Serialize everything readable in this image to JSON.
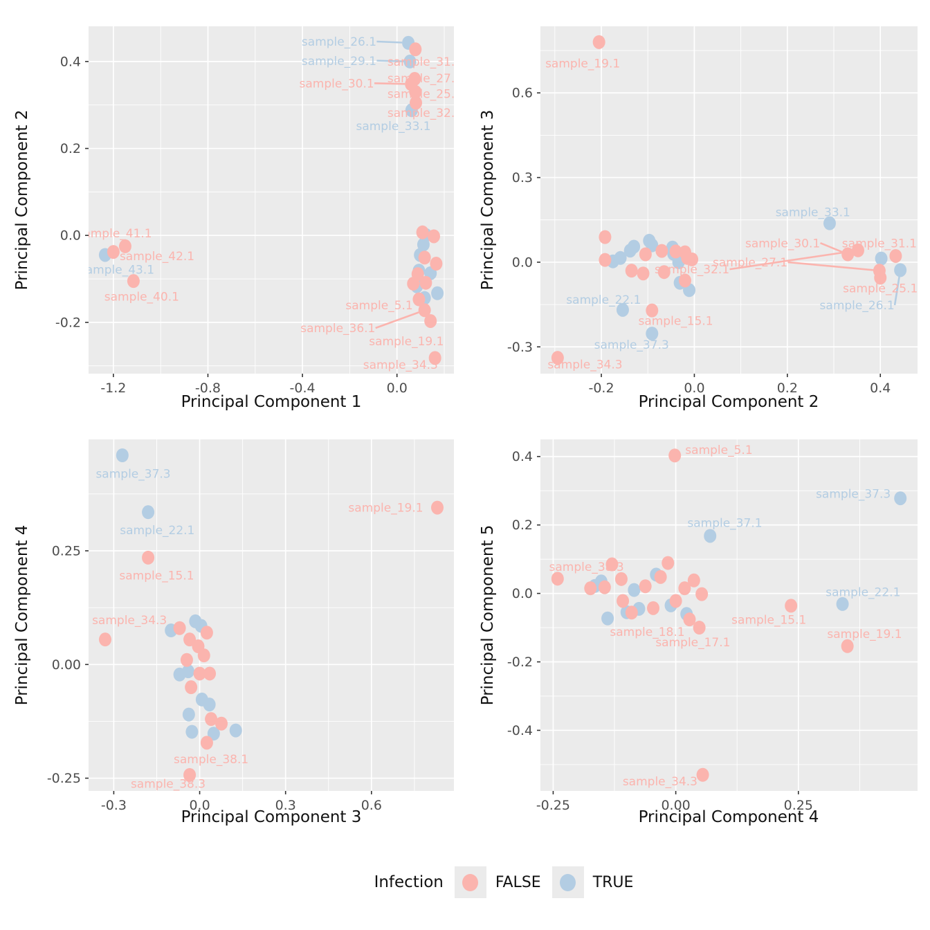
{
  "colors": {
    "false_pink": "#FBB4AE",
    "true_blue": "#B3CDE3",
    "panel_bg": "#EBEBEB",
    "grid": "#FFFFFF",
    "tick_text": "#4D4D4D",
    "tick_mark": "#333333",
    "axis_title": "#111111",
    "figure_bg": "#FFFFFF"
  },
  "legend": {
    "title": "Infection",
    "false_label": "FALSE",
    "true_label": "TRUE"
  },
  "point_fields": [
    "x",
    "y",
    "infection(F/T)",
    "label",
    "label_x",
    "label_y",
    "leader"
  ],
  "chart_data": [
    {
      "id": "pc1-vs-pc2",
      "type": "scatter",
      "xlabel": "Principal Component 1",
      "ylabel": "Principal Component 2",
      "x_ticks": [
        -1.2,
        -0.8,
        -0.4,
        0.0
      ],
      "x_tick_labels": [
        "-1.2",
        "-0.8",
        "-0.4",
        "0.0"
      ],
      "y_ticks": [
        -0.2,
        0.0,
        0.2,
        0.4
      ],
      "y_tick_labels": [
        "-0.2",
        "0.0",
        "0.2",
        "0.4"
      ],
      "xlim": [
        -1.305,
        0.241
      ],
      "ylim": [
        -0.318,
        0.481
      ],
      "points": [
        [
          0.048,
          0.443,
          "T",
          "sample_26.1",
          -0.245,
          0.446,
          1
        ],
        [
          0.055,
          0.4,
          "T",
          "sample_29.1",
          -0.245,
          0.402,
          1
        ],
        [
          0.062,
          0.288,
          "T",
          "sample_33.1",
          -0.015,
          0.252,
          0
        ],
        [
          -1.235,
          -0.045,
          "T",
          "sample_43.1",
          -1.185,
          -0.078,
          0
        ],
        [
          0.122,
          0.001,
          "T"
        ],
        [
          0.112,
          -0.021,
          "T"
        ],
        [
          0.098,
          -0.045,
          "T"
        ],
        [
          0.142,
          -0.087,
          "T"
        ],
        [
          0.093,
          -0.081,
          "T"
        ],
        [
          0.084,
          -0.117,
          "T"
        ],
        [
          0.171,
          -0.133,
          "T"
        ],
        [
          0.117,
          -0.144,
          "T"
        ],
        [
          0.078,
          0.428,
          "F",
          "sample_31.1",
          0.118,
          0.4,
          0
        ],
        [
          0.075,
          0.36,
          "F",
          "sample_27.1",
          0.118,
          0.362,
          0
        ],
        [
          0.06,
          0.348,
          "F",
          "sample_30.1",
          -0.255,
          0.35,
          1
        ],
        [
          0.078,
          0.33,
          "F",
          "sample_25.1",
          0.118,
          0.326,
          0
        ],
        [
          0.08,
          0.305,
          "F",
          "sample_32.1",
          0.118,
          0.282,
          0
        ],
        [
          0.108,
          0.007,
          "F"
        ],
        [
          0.156,
          -0.002,
          "F"
        ],
        [
          0.117,
          -0.051,
          "F"
        ],
        [
          0.166,
          -0.065,
          "F"
        ],
        [
          0.088,
          -0.089,
          "F"
        ],
        [
          0.069,
          -0.111,
          "F"
        ],
        [
          0.122,
          -0.109,
          "F"
        ],
        [
          0.093,
          -0.147,
          "F",
          "sample_5.1",
          -0.075,
          -0.16,
          0
        ],
        [
          0.117,
          -0.172,
          "F",
          "sample_36.1",
          -0.25,
          -0.213,
          1
        ],
        [
          0.142,
          -0.197,
          "F",
          "sample_19.1",
          0.04,
          -0.243,
          0
        ],
        [
          0.161,
          -0.282,
          "F",
          "sample_34.3",
          0.015,
          -0.297,
          0
        ],
        [
          -1.2,
          -0.038,
          "F",
          "sample_41.1",
          -1.195,
          0.005,
          0
        ],
        [
          -1.15,
          -0.025,
          "F",
          "sample_42.1",
          -1.015,
          -0.047,
          0
        ],
        [
          -1.115,
          -0.105,
          "F",
          "sample_40.1",
          -1.08,
          -0.14,
          0
        ]
      ]
    },
    {
      "id": "pc2-vs-pc3",
      "type": "scatter",
      "xlabel": "Principal Component 2",
      "ylabel": "Principal Component 3",
      "x_ticks": [
        -0.2,
        0.0,
        0.2,
        0.4
      ],
      "x_tick_labels": [
        "-0.2",
        "0.0",
        "0.2",
        "0.4"
      ],
      "y_ticks": [
        -0.3,
        0.0,
        0.3,
        0.6
      ],
      "y_tick_labels": [
        "-0.3",
        "0.0",
        "0.3",
        "0.6"
      ],
      "xlim": [
        -0.331,
        0.48
      ],
      "ylim": [
        -0.395,
        0.836
      ],
      "points": [
        [
          0.291,
          0.138,
          "T",
          "sample_33.1",
          0.255,
          0.178,
          0
        ],
        [
          0.402,
          0.013,
          "T"
        ],
        [
          0.443,
          -0.028,
          "T",
          "sample_26.1",
          0.35,
          -0.152,
          1
        ],
        [
          -0.175,
          0.003,
          "T"
        ],
        [
          -0.159,
          0.015,
          "T"
        ],
        [
          -0.138,
          0.041,
          "T"
        ],
        [
          -0.13,
          0.055,
          "T"
        ],
        [
          -0.097,
          0.076,
          "T"
        ],
        [
          -0.091,
          0.06,
          "T"
        ],
        [
          -0.047,
          0.052,
          "T"
        ],
        [
          -0.045,
          0.03,
          "T"
        ],
        [
          -0.034,
          0.0,
          "T"
        ],
        [
          -0.031,
          -0.073,
          "T"
        ],
        [
          -0.011,
          -0.099,
          "T"
        ],
        [
          -0.154,
          -0.169,
          "T",
          "sample_22.1",
          -0.195,
          -0.132,
          0
        ],
        [
          -0.091,
          -0.253,
          "T",
          "sample_37.3",
          -0.135,
          -0.292,
          0
        ],
        [
          -0.205,
          0.78,
          "F",
          "sample_19.1",
          -0.24,
          0.705,
          0
        ],
        [
          -0.192,
          0.089,
          "F"
        ],
        [
          -0.192,
          0.008,
          "F"
        ],
        [
          -0.135,
          -0.03,
          "F"
        ],
        [
          -0.11,
          -0.04,
          "F"
        ],
        [
          -0.105,
          0.028,
          "F"
        ],
        [
          -0.07,
          0.04,
          "F"
        ],
        [
          -0.065,
          -0.035,
          "F"
        ],
        [
          -0.04,
          0.038,
          "F"
        ],
        [
          -0.02,
          0.035,
          "F"
        ],
        [
          -0.015,
          0.015,
          "F"
        ],
        [
          -0.02,
          -0.065,
          "F"
        ],
        [
          -0.005,
          0.01,
          "F"
        ],
        [
          -0.091,
          -0.171,
          "F",
          "sample_15.1",
          -0.04,
          -0.207,
          0
        ],
        [
          -0.294,
          -0.339,
          "F",
          "sample_34.3",
          -0.235,
          -0.362,
          0
        ],
        [
          0.33,
          0.028,
          "F",
          "sample_30.1",
          0.19,
          0.068,
          1
        ],
        [
          0.352,
          0.042,
          "F",
          "sample_32.1",
          -0.005,
          -0.025,
          1
        ],
        [
          0.433,
          0.022,
          "F",
          "sample_31.1",
          0.398,
          0.068,
          0
        ],
        [
          0.398,
          -0.03,
          "F",
          "sample_27.1",
          0.12,
          0.0,
          1
        ],
        [
          0.4,
          -0.055,
          "F",
          "sample_25.1",
          0.4,
          -0.092,
          0
        ]
      ]
    },
    {
      "id": "pc3-vs-pc4",
      "type": "scatter",
      "xlabel": "Principal Component 3",
      "ylabel": "Principal Component 4",
      "x_ticks": [
        -0.3,
        0.0,
        0.3,
        0.6
      ],
      "x_tick_labels": [
        "-0.3",
        "0.0",
        "0.3",
        "0.6"
      ],
      "y_ticks": [
        -0.25,
        0.0,
        0.25
      ],
      "y_tick_labels": [
        "-0.25",
        "0.00",
        "0.25"
      ],
      "xlim": [
        -0.388,
        0.888
      ],
      "ylim": [
        -0.278,
        0.495
      ],
      "points": [
        [
          -0.27,
          0.46,
          "T",
          "sample_37.3",
          -0.232,
          0.42,
          0
        ],
        [
          -0.18,
          0.335,
          "T",
          "sample_22.1",
          -0.148,
          0.296,
          0
        ],
        [
          -0.1,
          0.075,
          "T"
        ],
        [
          -0.015,
          0.095,
          "T"
        ],
        [
          0.005,
          0.085,
          "T"
        ],
        [
          -0.07,
          -0.022,
          "T"
        ],
        [
          -0.04,
          -0.015,
          "T"
        ],
        [
          0.008,
          -0.077,
          "T"
        ],
        [
          0.034,
          -0.088,
          "T"
        ],
        [
          -0.038,
          -0.11,
          "T"
        ],
        [
          -0.027,
          -0.148,
          "T"
        ],
        [
          0.049,
          -0.152,
          "T"
        ],
        [
          0.126,
          -0.145,
          "T"
        ],
        [
          -0.18,
          0.235,
          "F",
          "sample_15.1",
          -0.15,
          0.196,
          0
        ],
        [
          0.83,
          0.345,
          "F",
          "sample_19.1",
          0.65,
          0.345,
          0
        ],
        [
          -0.33,
          0.055,
          "F",
          "sample_34.3",
          -0.245,
          0.098,
          0
        ],
        [
          -0.07,
          0.08,
          "F"
        ],
        [
          0.025,
          0.07,
          "F"
        ],
        [
          -0.035,
          0.055,
          "F"
        ],
        [
          -0.005,
          0.04,
          "F"
        ],
        [
          -0.045,
          0.01,
          "F"
        ],
        [
          0.015,
          0.02,
          "F"
        ],
        [
          0.035,
          -0.02,
          "F"
        ],
        [
          0.0,
          -0.02,
          "F"
        ],
        [
          -0.03,
          -0.05,
          "F"
        ],
        [
          0.04,
          -0.12,
          "F"
        ],
        [
          0.076,
          -0.13,
          "F"
        ],
        [
          0.025,
          -0.172,
          "F",
          "sample_38.1",
          0.04,
          -0.208,
          0
        ],
        [
          -0.035,
          -0.243,
          "F",
          "sample_38.3",
          -0.11,
          -0.262,
          0
        ]
      ]
    },
    {
      "id": "pc4-vs-pc5",
      "type": "scatter",
      "xlabel": "Principal Component 4",
      "ylabel": "Principal Component 5",
      "x_ticks": [
        -0.25,
        0.0,
        0.25
      ],
      "x_tick_labels": [
        "-0.25",
        "0.00",
        "0.25"
      ],
      "y_ticks": [
        -0.4,
        -0.2,
        0.0,
        0.2,
        0.4
      ],
      "y_tick_labels": [
        "-0.4",
        "-0.2",
        "0.0",
        "0.2",
        "0.4"
      ],
      "xlim": [
        -0.276,
        0.493
      ],
      "ylim": [
        -0.577,
        0.45
      ],
      "points": [
        [
          0.458,
          0.278,
          "T",
          "sample_37.3",
          0.362,
          0.292,
          0
        ],
        [
          0.07,
          0.168,
          "T",
          "sample_37.1",
          0.1,
          0.207,
          0
        ],
        [
          0.34,
          -0.031,
          "T",
          "sample_22.1",
          0.382,
          0.004,
          0
        ],
        [
          -0.165,
          0.022,
          "T"
        ],
        [
          -0.152,
          0.035,
          "T"
        ],
        [
          -0.139,
          -0.073,
          "T"
        ],
        [
          -0.1,
          -0.055,
          "T"
        ],
        [
          -0.085,
          0.01,
          "T"
        ],
        [
          -0.075,
          -0.045,
          "T"
        ],
        [
          -0.04,
          0.055,
          "T"
        ],
        [
          -0.01,
          -0.035,
          "T"
        ],
        [
          0.022,
          -0.06,
          "T"
        ],
        [
          -0.002,
          0.403,
          "F",
          "sample_5.1",
          0.088,
          0.42,
          0
        ],
        [
          -0.241,
          0.043,
          "F",
          "sample_38.3",
          -0.182,
          0.078,
          0
        ],
        [
          -0.174,
          0.015,
          "F"
        ],
        [
          -0.145,
          0.018,
          "F"
        ],
        [
          -0.13,
          0.085,
          "F"
        ],
        [
          -0.111,
          0.042,
          "F"
        ],
        [
          -0.108,
          -0.022,
          "F"
        ],
        [
          -0.09,
          -0.056,
          "F"
        ],
        [
          -0.062,
          0.021,
          "F"
        ],
        [
          -0.046,
          -0.043,
          "F"
        ],
        [
          -0.016,
          0.089,
          "F"
        ],
        [
          -0.031,
          0.048,
          "F"
        ],
        [
          0.0,
          -0.022,
          "F"
        ],
        [
          0.018,
          0.015,
          "F"
        ],
        [
          0.037,
          0.038,
          "F"
        ],
        [
          0.053,
          -0.002,
          "F"
        ],
        [
          0.028,
          -0.076,
          "F",
          "sample_18.1",
          -0.058,
          -0.112,
          0
        ],
        [
          0.048,
          -0.1,
          "F",
          "sample_17.1",
          0.035,
          -0.142,
          0
        ],
        [
          0.235,
          -0.036,
          "F",
          "sample_15.1",
          0.19,
          -0.076,
          0
        ],
        [
          0.35,
          -0.154,
          "F",
          "sample_19.1",
          0.385,
          -0.118,
          0
        ],
        [
          0.055,
          -0.53,
          "F",
          "sample_34.3",
          -0.032,
          -0.548,
          0
        ]
      ]
    }
  ]
}
